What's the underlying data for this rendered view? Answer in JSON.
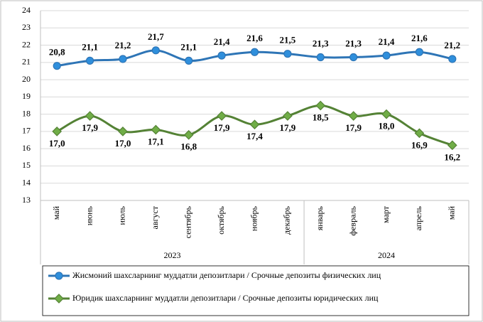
{
  "chart_data": {
    "type": "line",
    "categories": [
      "май",
      "июнь",
      "июль",
      "август",
      "сентябрь",
      "октябрь",
      "ноябрь",
      "декабрь",
      "январь",
      "февраль",
      "март",
      "апрель",
      "май"
    ],
    "x_groups": [
      {
        "label": "2023",
        "categories": 8
      },
      {
        "label": "2024",
        "categories": 5
      }
    ],
    "series": [
      {
        "name": "Жисмоний шахсларнинг  муддатли депозитлари / Срочные депозиты физических лиц",
        "color": "#2e75b6",
        "marker": "circle",
        "values": [
          20.8,
          21.1,
          21.2,
          21.7,
          21.1,
          21.4,
          21.6,
          21.5,
          21.3,
          21.3,
          21.4,
          21.6,
          21.2
        ],
        "value_labels": [
          "20,8",
          "21,1",
          "21,2",
          "21,7",
          "21,1",
          "21,4",
          "21,6",
          "21,5",
          "21,3",
          "21,3",
          "21,4",
          "21,6",
          "21,2"
        ]
      },
      {
        "name": "Юридик шахсларнинг  муддатли депозитлари / Срочные депозиты юридических лиц",
        "color": "#548235",
        "marker": "diamond",
        "values": [
          17.0,
          17.9,
          17.0,
          17.1,
          16.8,
          17.9,
          17.4,
          17.9,
          18.5,
          17.9,
          18.0,
          16.9,
          16.2
        ],
        "value_labels": [
          "17,0",
          "17,9",
          "17,0",
          "17,1",
          "16,8",
          "17,9",
          "17,4",
          "17,9",
          "18,5",
          "17,9",
          "18,0",
          "16,9",
          "16,2"
        ]
      }
    ],
    "ylim": [
      13,
      24
    ],
    "yticks": [
      13,
      14,
      15,
      16,
      17,
      18,
      19,
      20,
      21,
      22,
      23,
      24
    ],
    "grid": true
  }
}
